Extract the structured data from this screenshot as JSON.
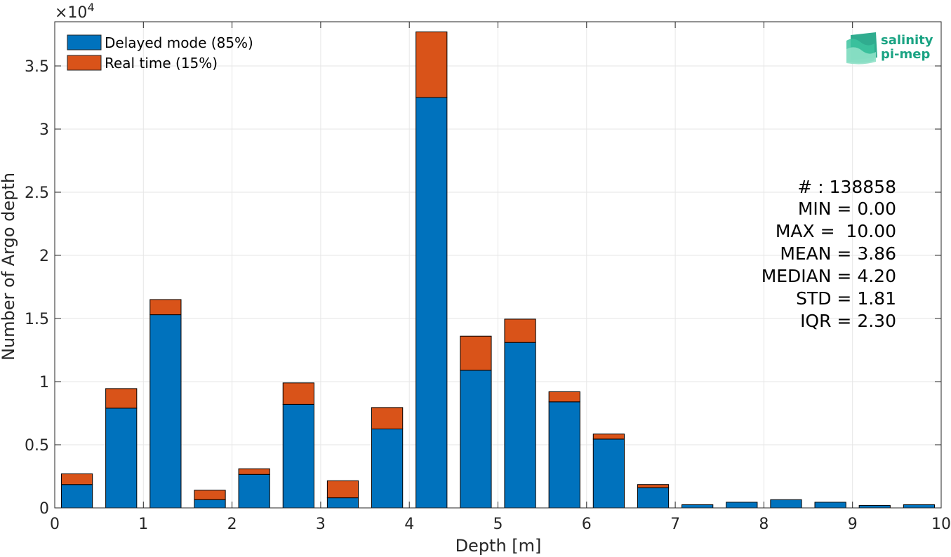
{
  "chart_data": {
    "type": "bar",
    "stacked": true,
    "x": [
      0.25,
      0.75,
      1.25,
      1.75,
      2.25,
      2.75,
      3.25,
      3.75,
      4.25,
      4.75,
      5.25,
      5.75,
      6.25,
      6.75,
      7.25,
      7.75,
      8.25,
      8.75,
      9.25,
      9.75
    ],
    "series": [
      {
        "name": "Delayed mode (85%)",
        "color": "#0072bd",
        "values": [
          1850,
          7900,
          15300,
          650,
          2650,
          8200,
          800,
          6250,
          32500,
          10900,
          13100,
          8400,
          5450,
          1600,
          250,
          450,
          650,
          450,
          200,
          250
        ]
      },
      {
        "name": "Real time (15%)",
        "color": "#d95319",
        "values": [
          850,
          1550,
          1200,
          750,
          450,
          1700,
          1350,
          1700,
          5200,
          2700,
          1850,
          800,
          400,
          250,
          0,
          0,
          0,
          0,
          0,
          0
        ]
      }
    ],
    "xlabel": "Depth [m]",
    "ylabel": "Number of Argo depth",
    "xlim": [
      0,
      10
    ],
    "ylim": [
      0,
      38500
    ],
    "xticks": [
      "0",
      "1",
      "2",
      "3",
      "4",
      "5",
      "6",
      "7",
      "8",
      "9",
      "10"
    ],
    "yticks": [
      {
        "value": 0,
        "label": "0"
      },
      {
        "value": 5000,
        "label": "0.5"
      },
      {
        "value": 10000,
        "label": "1"
      },
      {
        "value": 15000,
        "label": "1.5"
      },
      {
        "value": 20000,
        "label": "2"
      },
      {
        "value": 25000,
        "label": "2.5"
      },
      {
        "value": 30000,
        "label": "3"
      },
      {
        "value": 35000,
        "label": "3.5"
      }
    ],
    "y_exponent_prefix": "×10",
    "y_exponent": "4",
    "grid": true,
    "legend_position": "top-left",
    "annotations": [
      "# : 138858",
      "MIN = 0.00",
      "MAX =  10.00",
      "MEAN = 3.86",
      "MEDIAN = 4.20",
      "STD = 1.81",
      "IQR = 2.30"
    ]
  },
  "logo": {
    "line1": "salinity",
    "line2": "pi-mep",
    "color": "#1aa383"
  }
}
